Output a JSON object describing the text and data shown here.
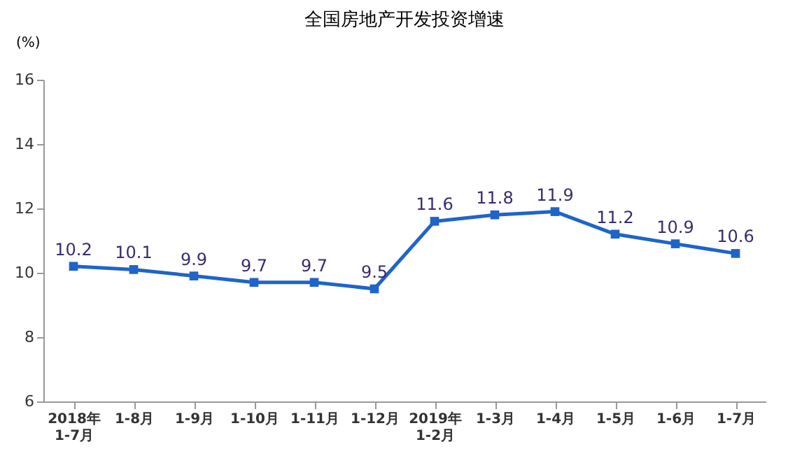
{
  "chart_data": {
    "type": "line",
    "title": "全国房地产开发投资增速",
    "ylabel": "(%)",
    "categories": [
      "2018年\n1-7月",
      "1-8月",
      "1-9月",
      "1-10月",
      "1-11月",
      "1-12月",
      "2019年\n1-2月",
      "1-3月",
      "1-4月",
      "1-5月",
      "1-6月",
      "1-7月"
    ],
    "series": [
      {
        "color": "#1f64c8",
        "values": [
          10.2,
          10.1,
          9.9,
          9.7,
          9.7,
          9.5,
          11.6,
          11.8,
          11.9,
          11.2,
          10.9,
          10.6
        ]
      }
    ],
    "ylim": [
      6,
      16
    ],
    "yticks": [
      6,
      8,
      10,
      12,
      14,
      16
    ],
    "data_labels": true,
    "marker": "square",
    "line_style": "solid",
    "grid": false
  }
}
